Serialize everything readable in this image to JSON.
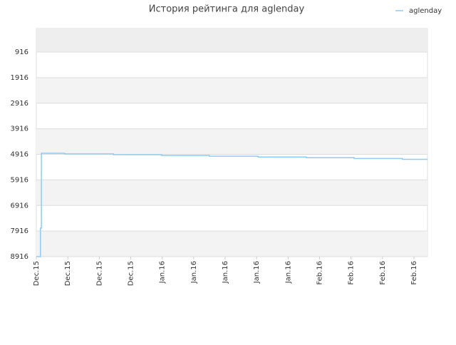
{
  "chart_data": {
    "type": "line",
    "title": "История рейтинга для aglenday",
    "series": [
      {
        "name": "aglenday",
        "color": "#8ecbf5",
        "x": [
          0,
          0.13,
          0.13,
          0.16,
          0.16,
          0.9,
          0.9,
          2.45,
          2.45,
          3.98,
          3.98,
          5.5,
          5.5,
          7.05,
          7.05,
          8.58,
          8.58,
          10.1,
          10.1,
          11.63,
          11.63,
          12.43
        ],
        "values": [
          8916,
          8916,
          7800,
          7800,
          4874,
          4874,
          4900,
          4900,
          4930,
          4930,
          4960,
          4960,
          4990,
          4990,
          5020,
          5020,
          5050,
          5050,
          5080,
          5080,
          5110,
          5110
        ]
      }
    ],
    "xlim": [
      0,
      12.43
    ],
    "xticks": [
      {
        "value": 0,
        "label": "Dec.15"
      },
      {
        "value": 1,
        "label": "Dec.15"
      },
      {
        "value": 2,
        "label": "Dec.15"
      },
      {
        "value": 3,
        "label": "Dec.15"
      },
      {
        "value": 4,
        "label": "Jan.16"
      },
      {
        "value": 5,
        "label": "Jan.16"
      },
      {
        "value": 6,
        "label": "Jan.16"
      },
      {
        "value": 7,
        "label": "Jan.16"
      },
      {
        "value": 8,
        "label": "Jan.16"
      },
      {
        "value": 9,
        "label": "Feb.16"
      },
      {
        "value": 10,
        "label": "Feb.16"
      },
      {
        "value": 11,
        "label": "Feb.16"
      },
      {
        "value": 12,
        "label": "Feb.16"
      }
    ],
    "ylim": [
      8916,
      -4
    ],
    "yticks": [
      916,
      1916,
      2916,
      3916,
      4916,
      5916,
      6916,
      7916,
      8916
    ],
    "grid": true,
    "legend": "top-right"
  }
}
